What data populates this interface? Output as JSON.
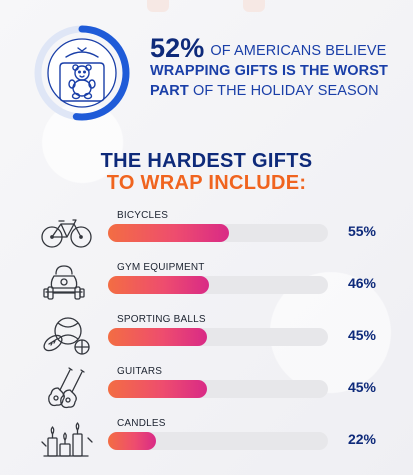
{
  "hero": {
    "stat": "52%",
    "line1": "OF AMERICANS BELIEVE",
    "line2": "WRAPPING GIFTS IS THE WORST",
    "line3_bold": "PART",
    "line3_rest": "OF THE HOLIDAY SEASON",
    "ring_fraction": 0.52,
    "ring_color": "#1f5bd8",
    "icon": "teddy-bear-gift-wrap-icon"
  },
  "heading": {
    "line1": "THE HARDEST GIFTS",
    "line2": "TO WRAP INCLUDE:",
    "line1_color": "#0e2a7a",
    "line2_color": "#f0641f"
  },
  "chart_data": {
    "type": "bar",
    "categories": [
      "BICYCLES",
      "GYM EQUIPMENT",
      "SPORTING BALLS",
      "GUITARS",
      "CANDLES"
    ],
    "values": [
      55,
      46,
      45,
      45,
      22
    ],
    "value_labels": [
      "55%",
      "46%",
      "45%",
      "45%",
      "22%"
    ],
    "icons": [
      "bicycle-icon",
      "kettlebell-dumbbell-icon",
      "sporting-balls-icon",
      "guitars-icon",
      "candles-icon"
    ],
    "xlim": [
      0,
      100
    ],
    "orientation": "horizontal",
    "colors": {
      "fill_start": "#f36d43",
      "fill_end": "#d92a86",
      "track": "#e7e7ea"
    }
  }
}
